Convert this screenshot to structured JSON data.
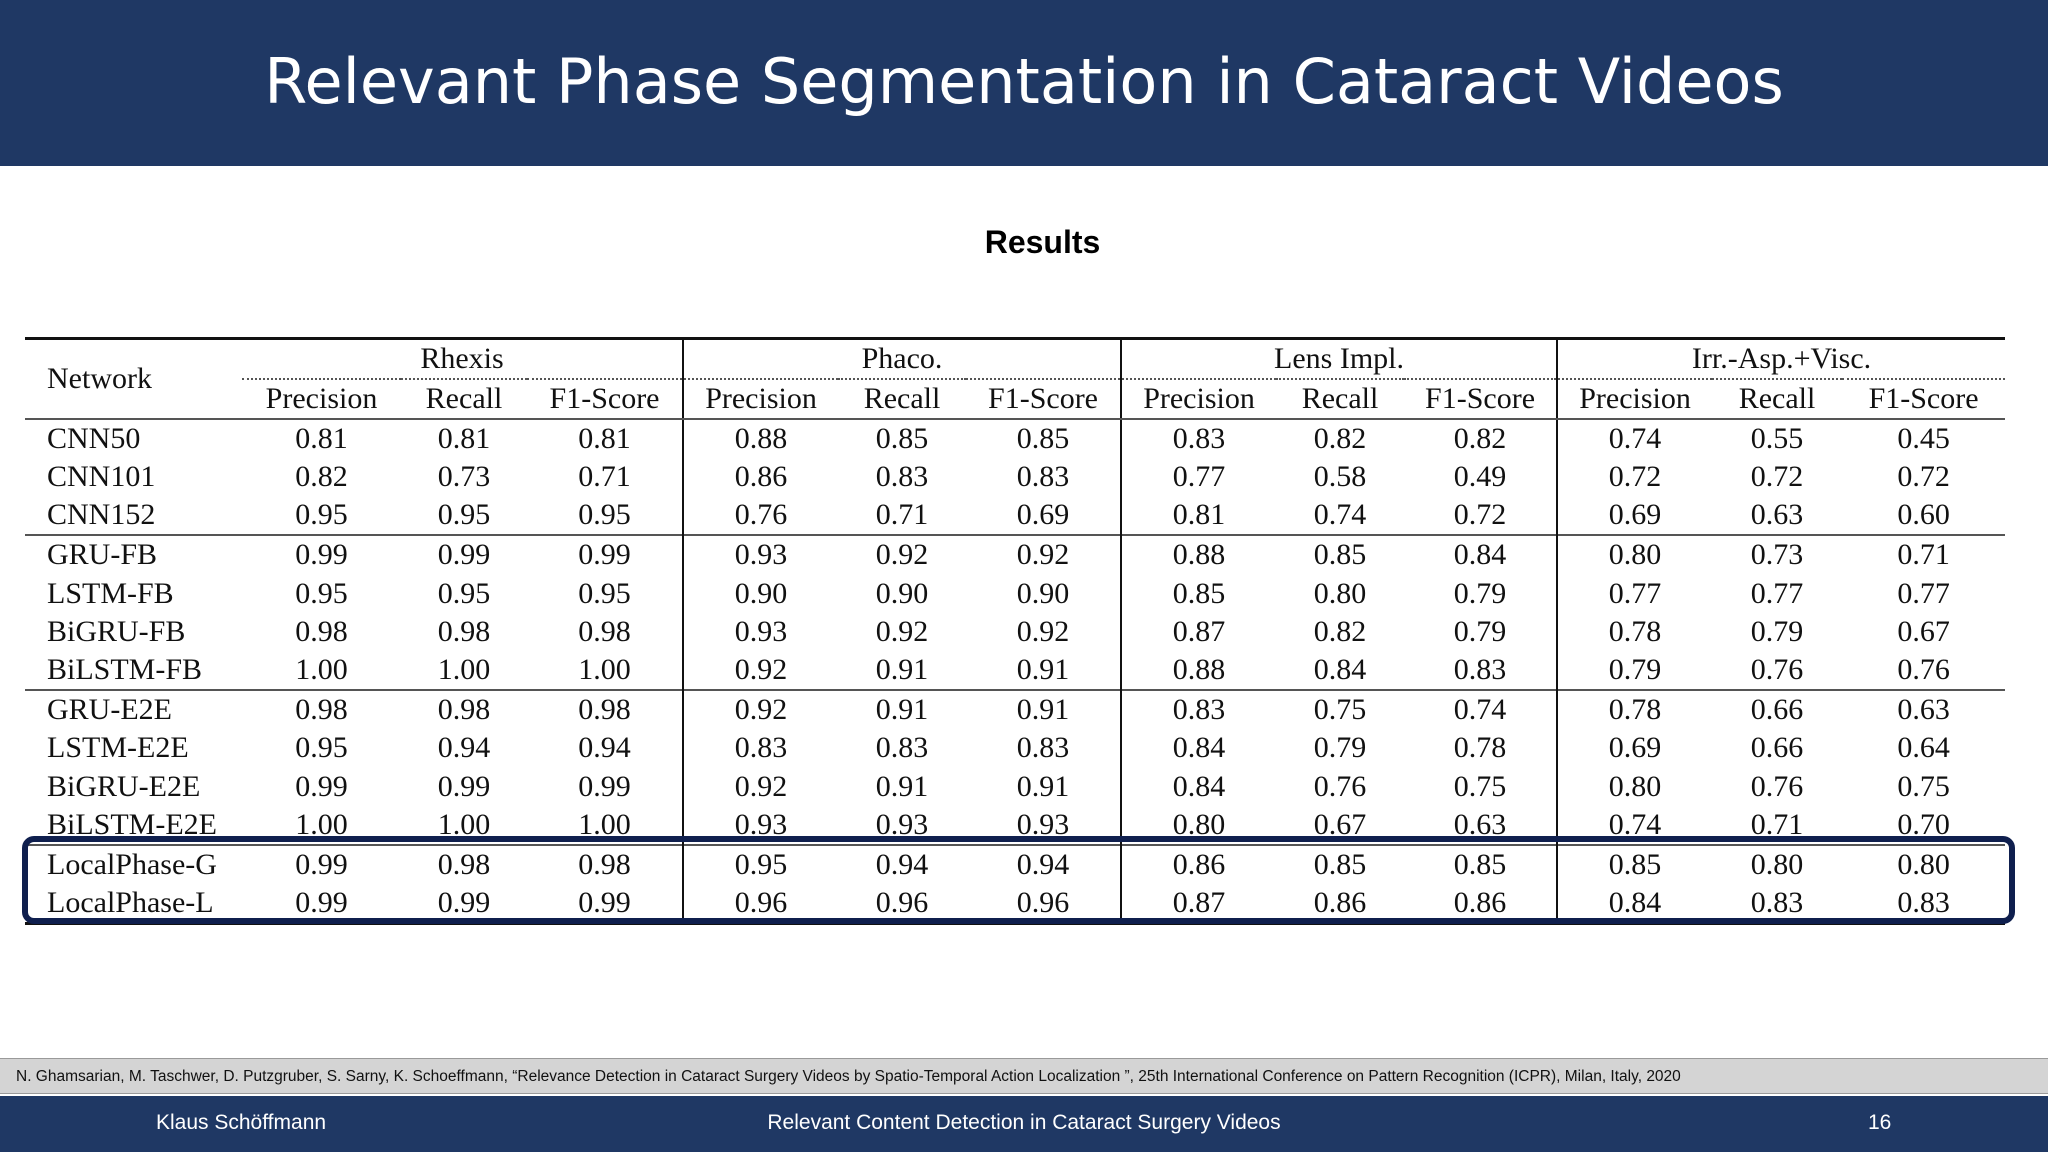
{
  "slide": {
    "title": "Relevant Phase Segmentation in Cataract Videos",
    "heading": "Results"
  },
  "table": {
    "network_header": "Network",
    "groups": [
      "Rhexis",
      "Phaco.",
      "Lens Impl.",
      "Irr.-Asp.+Visc."
    ],
    "subheaders": [
      "Precision",
      "Recall",
      "F1-Score"
    ],
    "rows": [
      {
        "name": "CNN50",
        "values": [
          "0.81",
          "0.81",
          "0.81",
          "0.88",
          "0.85",
          "0.85",
          "0.83",
          "0.82",
          "0.82",
          "0.74",
          "0.55",
          "0.45"
        ],
        "bold": []
      },
      {
        "name": "CNN101",
        "values": [
          "0.82",
          "0.73",
          "0.71",
          "0.86",
          "0.83",
          "0.83",
          "0.77",
          "0.58",
          "0.49",
          "0.72",
          "0.72",
          "0.72"
        ],
        "bold": []
      },
      {
        "name": "CNN152",
        "values": [
          "0.95",
          "0.95",
          "0.95",
          "0.76",
          "0.71",
          "0.69",
          "0.81",
          "0.74",
          "0.72",
          "0.69",
          "0.63",
          "0.60"
        ],
        "bold": []
      },
      {
        "name": "GRU-FB",
        "values": [
          "0.99",
          "0.99",
          "0.99",
          "0.93",
          "0.92",
          "0.92",
          "0.88",
          "0.85",
          "0.84",
          "0.80",
          "0.73",
          "0.71"
        ],
        "bold": [
          6
        ]
      },
      {
        "name": "LSTM-FB",
        "values": [
          "0.95",
          "0.95",
          "0.95",
          "0.90",
          "0.90",
          "0.90",
          "0.85",
          "0.80",
          "0.79",
          "0.77",
          "0.77",
          "0.77"
        ],
        "bold": []
      },
      {
        "name": "BiGRU-FB",
        "values": [
          "0.98",
          "0.98",
          "0.98",
          "0.93",
          "0.92",
          "0.92",
          "0.87",
          "0.82",
          "0.79",
          "0.78",
          "0.79",
          "0.67"
        ],
        "bold": []
      },
      {
        "name": "BiLSTM-FB",
        "values": [
          "1.00",
          "1.00",
          "1.00",
          "0.92",
          "0.91",
          "0.91",
          "0.88",
          "0.84",
          "0.83",
          "0.79",
          "0.76",
          "0.76"
        ],
        "bold": [
          0,
          1,
          2,
          6
        ]
      },
      {
        "name": "GRU-E2E",
        "values": [
          "0.98",
          "0.98",
          "0.98",
          "0.92",
          "0.91",
          "0.91",
          "0.83",
          "0.75",
          "0.74",
          "0.78",
          "0.66",
          "0.63"
        ],
        "bold": []
      },
      {
        "name": "LSTM-E2E",
        "values": [
          "0.95",
          "0.94",
          "0.94",
          "0.83",
          "0.83",
          "0.83",
          "0.84",
          "0.79",
          "0.78",
          "0.69",
          "0.66",
          "0.64"
        ],
        "bold": []
      },
      {
        "name": "BiGRU-E2E",
        "values": [
          "0.99",
          "0.99",
          "0.99",
          "0.92",
          "0.91",
          "0.91",
          "0.84",
          "0.76",
          "0.75",
          "0.80",
          "0.76",
          "0.75"
        ],
        "bold": []
      },
      {
        "name": "BiLSTM-E2E",
        "values": [
          "1.00",
          "1.00",
          "1.00",
          "0.93",
          "0.93",
          "0.93",
          "0.80",
          "0.67",
          "0.63",
          "0.74",
          "0.71",
          "0.70"
        ],
        "bold": [
          0,
          1,
          2
        ]
      },
      {
        "name": "LocalPhase-G",
        "values": [
          "0.99",
          "0.98",
          "0.98",
          "0.95",
          "0.94",
          "0.94",
          "0.86",
          "0.85",
          "0.85",
          "0.85",
          "0.80",
          "0.80"
        ],
        "bold": [
          9
        ]
      },
      {
        "name": "LocalPhase-L",
        "values": [
          "0.99",
          "0.99",
          "0.99",
          "0.96",
          "0.96",
          "0.96",
          "0.87",
          "0.86",
          "0.86",
          "0.84",
          "0.83",
          "0.83"
        ],
        "bold": [
          3,
          4,
          5,
          7,
          8,
          10,
          11
        ]
      }
    ],
    "rule_before_rows": [
      3,
      7,
      11
    ],
    "highlighted_rows": [
      "LocalPhase-G",
      "LocalPhase-L"
    ],
    "highlight_color": "#0f1f4e"
  },
  "citation": "N. Ghamsarian, M. Taschwer, D. Putzgruber, S. Sarny, K. Schoeffmann, “Relevance Detection in Cataract Surgery Videos by Spatio-Temporal Action Localization ”, 25th International Conference on Pattern Recognition (ICPR), Milan, Italy, 2020",
  "footer": {
    "author": "Klaus Schöffmann",
    "talk_title": "Relevant Content Detection in Cataract Surgery Videos",
    "page_number": "16"
  },
  "colors": {
    "bar_background": "#1f3864",
    "citation_background": "#d4d4d4"
  }
}
